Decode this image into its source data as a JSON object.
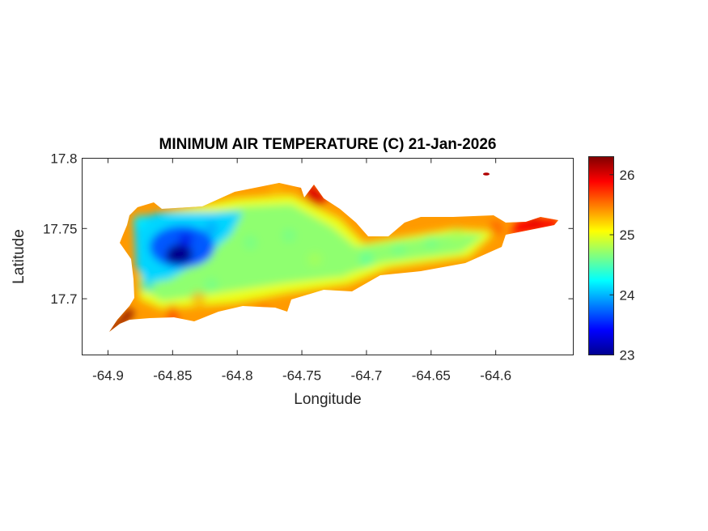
{
  "chart_data": {
    "type": "heatmap",
    "title": "MINIMUM AIR TEMPERATURE (C) 21-Jan-2026",
    "xlabel": "Longitude",
    "ylabel": "Latitude",
    "xlim": [
      -64.92,
      -64.54
    ],
    "ylim": [
      17.66,
      17.8
    ],
    "xticks": [
      -64.9,
      -64.85,
      -64.8,
      -64.75,
      -64.7,
      -64.65,
      -64.6
    ],
    "xtick_labels": [
      "-64.9",
      "-64.85",
      "-64.8",
      "-64.75",
      "-64.7",
      "-64.65",
      "-64.6"
    ],
    "yticks": [
      17.7,
      17.75,
      17.8
    ],
    "ytick_labels": [
      "17.7",
      "17.75",
      "17.8"
    ],
    "colorbar": {
      "min": 23,
      "max": 26.3,
      "ticks": [
        23,
        24,
        25,
        26
      ],
      "tick_labels": [
        "23",
        "24",
        "25",
        "26"
      ],
      "colormap": "jet"
    },
    "values_lon_lat_temp": [
      [
        -64.9,
        17.68,
        26.3
      ],
      [
        -64.875,
        17.755,
        24.2
      ],
      [
        -64.85,
        17.73,
        23.0
      ],
      [
        -64.84,
        17.742,
        23.3
      ],
      [
        -64.82,
        17.75,
        23.9
      ],
      [
        -64.87,
        17.71,
        24.1
      ],
      [
        -64.82,
        17.71,
        24.6
      ],
      [
        -64.79,
        17.74,
        24.6
      ],
      [
        -64.76,
        17.745,
        24.6
      ],
      [
        -64.74,
        17.728,
        24.8
      ],
      [
        -64.72,
        17.72,
        24.7
      ],
      [
        -64.7,
        17.728,
        24.5
      ],
      [
        -64.675,
        17.735,
        24.6
      ],
      [
        -64.65,
        17.74,
        24.6
      ],
      [
        -64.63,
        17.745,
        24.8
      ],
      [
        -64.6,
        17.75,
        25.7
      ],
      [
        -64.57,
        17.755,
        26.0
      ],
      [
        -64.77,
        17.78,
        25.3
      ],
      [
        -64.745,
        17.78,
        26.0
      ],
      [
        -64.78,
        17.695,
        25.5
      ],
      [
        -64.83,
        17.7,
        25.4
      ],
      [
        -64.85,
        17.69,
        25.9
      ],
      [
        -64.62,
        17.788,
        26.3
      ]
    ]
  }
}
